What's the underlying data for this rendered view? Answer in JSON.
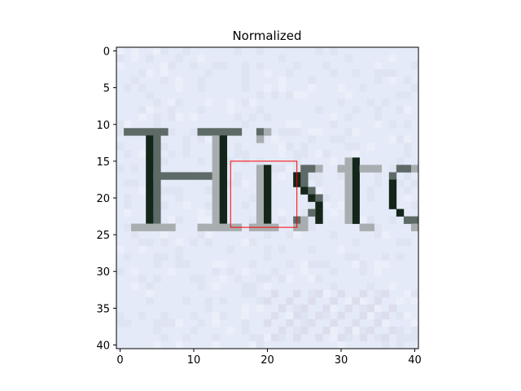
{
  "chart_data": {
    "type": "heatmap",
    "title": "Normalized",
    "xlabel": "",
    "ylabel": "",
    "xlim": [
      -0.5,
      40.5
    ],
    "ylim": [
      40.5,
      -0.5
    ],
    "x_ticks": [
      0,
      10,
      20,
      30,
      40
    ],
    "y_ticks": [
      0,
      5,
      10,
      15,
      20,
      25,
      30,
      35,
      40
    ],
    "image_content": "grayscale scan of handwritten/printed text fragment 'Hisc' on pale blue paper",
    "highlight_box": {
      "x0": 15,
      "y0": 15,
      "x1": 24,
      "y1": 24,
      "color": "#ff0000"
    },
    "colors": {
      "background": "#e4eaf8",
      "ink": "#14251a",
      "ink_mid": "#5d6a66",
      "ink_light": "#a8aeb0"
    }
  }
}
